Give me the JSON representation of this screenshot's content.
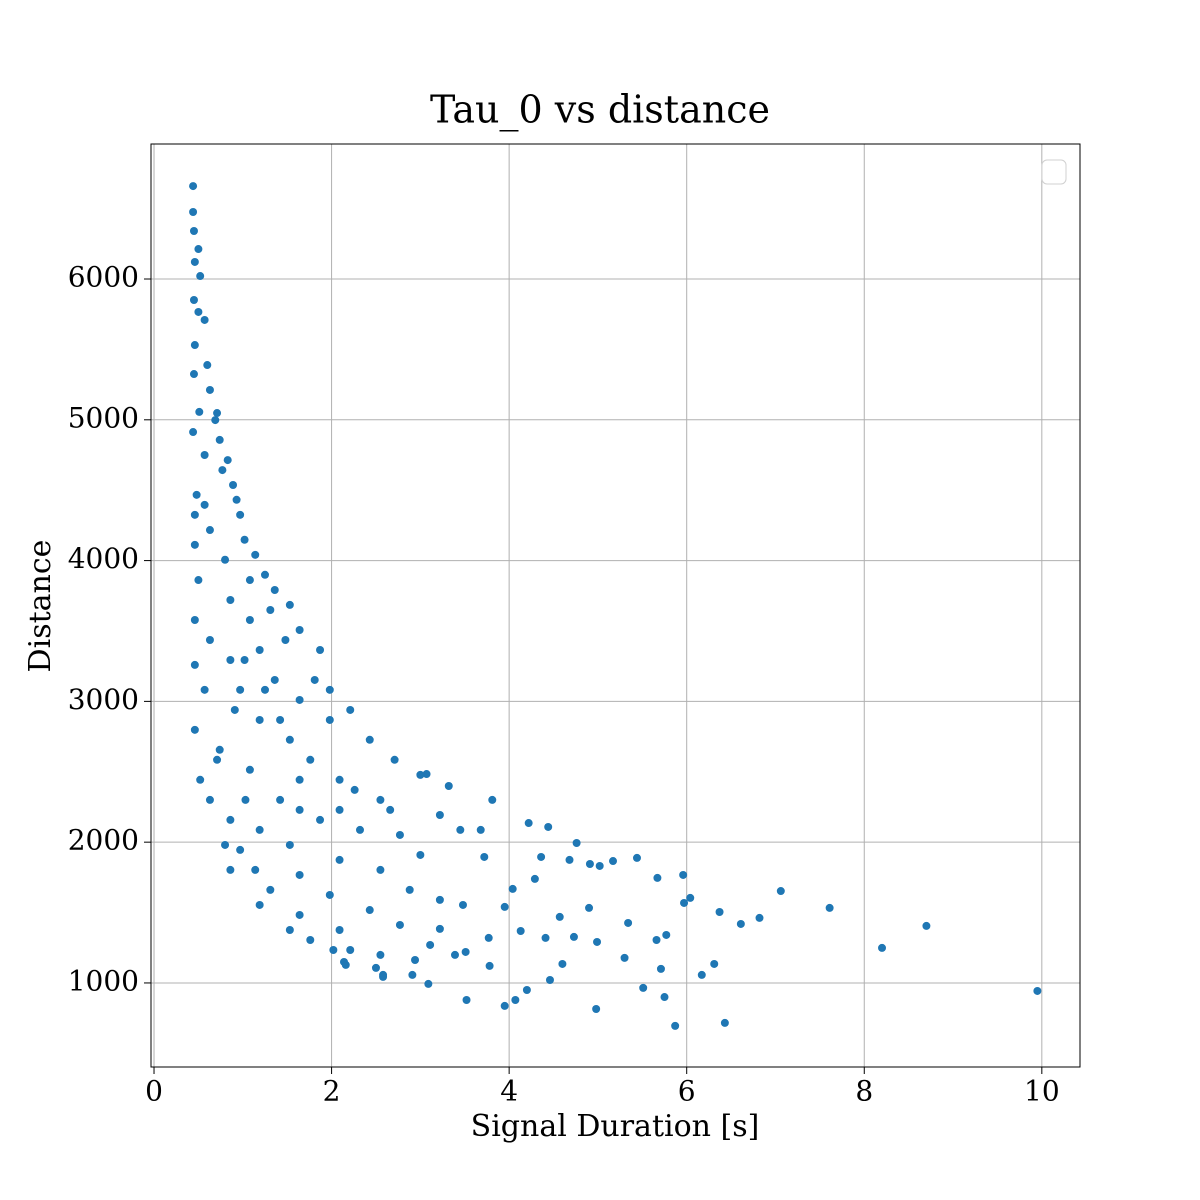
{
  "chart_data": {
    "type": "scatter",
    "title": "Tau_0 vs distance",
    "xlabel": "Signal Duration [s]",
    "ylabel": "Distance",
    "xlim": [
      -0.034,
      10.43
    ],
    "ylim": [
      403,
      6959
    ],
    "xticks": [
      0,
      2,
      4,
      6,
      8,
      10
    ],
    "yticks": [
      1000,
      2000,
      3000,
      4000,
      5000,
      6000
    ],
    "grid": true,
    "legend": "upper right",
    "color": "#1f77b4",
    "x": [
      9.95,
      8.7,
      8.2,
      7.61,
      7.06,
      6.82,
      6.61,
      6.43,
      6.37,
      6.31,
      6.17,
      6.04,
      5.96,
      5.97,
      5.87,
      5.75,
      5.71,
      5.77,
      5.66,
      5.67,
      5.51,
      5.34,
      5.3,
      5.44,
      5.17,
      4.98,
      4.99,
      4.9,
      5.02,
      4.91,
      4.73,
      4.76,
      4.68,
      4.6,
      4.57,
      4.46,
      4.41,
      4.44,
      4.36,
      4.29,
      4.2,
      4.22,
      4.13,
      4.07,
      4.04,
      3.95,
      3.95,
      3.78,
      3.77,
      3.81,
      3.72,
      3.52,
      3.51,
      3.48,
      3.09,
      3.22,
      3.32,
      2.91,
      2.58,
      2.5,
      2.14,
      2.02,
      3.07,
      0.44,
      0.44,
      0.45,
      0.5,
      0.46,
      0.52,
      0.45,
      0.5,
      0.57,
      0.46,
      0.6,
      0.45,
      0.63,
      0.51,
      0.71,
      0.44,
      0.74,
      0.57,
      0.83,
      0.48,
      0.89,
      0.46,
      0.97,
      0.63,
      1.02,
      0.46,
      0.8,
      1.14,
      0.5,
      1.25,
      0.86,
      0.46,
      1.36,
      1.08,
      1.53,
      0.63,
      0.46,
      1.64,
      1.19,
      0.86,
      1.87,
      0.57,
      1.36,
      0.97,
      1.81,
      1.98,
      0.46,
      2.21,
      1.19,
      1.53,
      0.74,
      2.43,
      0.52,
      1.76,
      1.08,
      2.71,
      2.09,
      0.63,
      1.42,
      3.0,
      2.55,
      0.86,
      1.87,
      3.22,
      1.19,
      2.32,
      2.77,
      0.8,
      1.53,
      3.45,
      3.68,
      0.97,
      2.09,
      3.0,
      1.14,
      1.64,
      2.55,
      0.86,
      1.31,
      1.98,
      2.88,
      1.19,
      1.64,
      2.43,
      3.22,
      1.53,
      2.09,
      2.77,
      1.76,
      2.21,
      2.55,
      3.11,
      2.16,
      2.94,
      3.39,
      2.58,
      0.69,
      0.77,
      0.93,
      0.57,
      1.08,
      1.31,
      1.48,
      1.02,
      1.25,
      1.64,
      0.91,
      1.42,
      1.98,
      0.71,
      1.64,
      2.26,
      1.03,
      1.64,
      2.66,
      2.09
    ],
    "values": [
      943,
      1405,
      1249,
      1533,
      1653,
      1462,
      1419,
      716,
      1504,
      1135,
      1057,
      1604,
      1767,
      1568,
      695,
      900,
      1100,
      1341,
      1305,
      1746,
      965,
      1426,
      1178,
      1888,
      1866,
      815,
      1291,
      1533,
      1831,
      1845,
      1327,
      1994,
      1874,
      1135,
      1469,
      1021,
      1320,
      2108,
      1895,
      1739,
      950,
      2136,
      1369,
      879,
      1668,
      837,
      1540,
      1121,
      1320,
      2300,
      1895,
      879,
      1220,
      1554,
      993,
      1384,
      2399,
      1057,
      1057,
      1107,
      1149,
      1234,
      2484,
      6660,
      6476,
      6341,
      6213,
      6121,
      6021,
      5851,
      5766,
      5709,
      5531,
      5389,
      5325,
      5212,
      5056,
      5048,
      4913,
      4857,
      4750,
      4714,
      4467,
      4537,
      4325,
      4325,
      4217,
      4148,
      4112,
      4006,
      4041,
      3862,
      3899,
      3720,
      3578,
      3791,
      3578,
      3685,
      3436,
      3259,
      3507,
      3365,
      3294,
      3365,
      3082,
      3152,
      3082,
      3152,
      3082,
      2798,
      2939,
      2868,
      2727,
      2656,
      2727,
      2443,
      2585,
      2514,
      2585,
      2443,
      2300,
      2300,
      2478,
      2300,
      2158,
      2158,
      2193,
      2087,
      2087,
      2051,
      1980,
      1980,
      2087,
      2087,
      1945,
      1874,
      1909,
      1803,
      1767,
      1803,
      1803,
      1661,
      1625,
      1661,
      1554,
      1483,
      1518,
      1590,
      1376,
      1376,
      1412,
      1305,
      1234,
      1199,
      1270,
      1128,
      1163,
      1199,
      1043,
      4998,
      4643,
      4432,
      4396,
      3862,
      3649,
      3436,
      3294,
      3082,
      3010,
      2939,
      2868,
      2868,
      2585,
      2443,
      2371,
      2300,
      2229,
      2229,
      2229
    ]
  }
}
